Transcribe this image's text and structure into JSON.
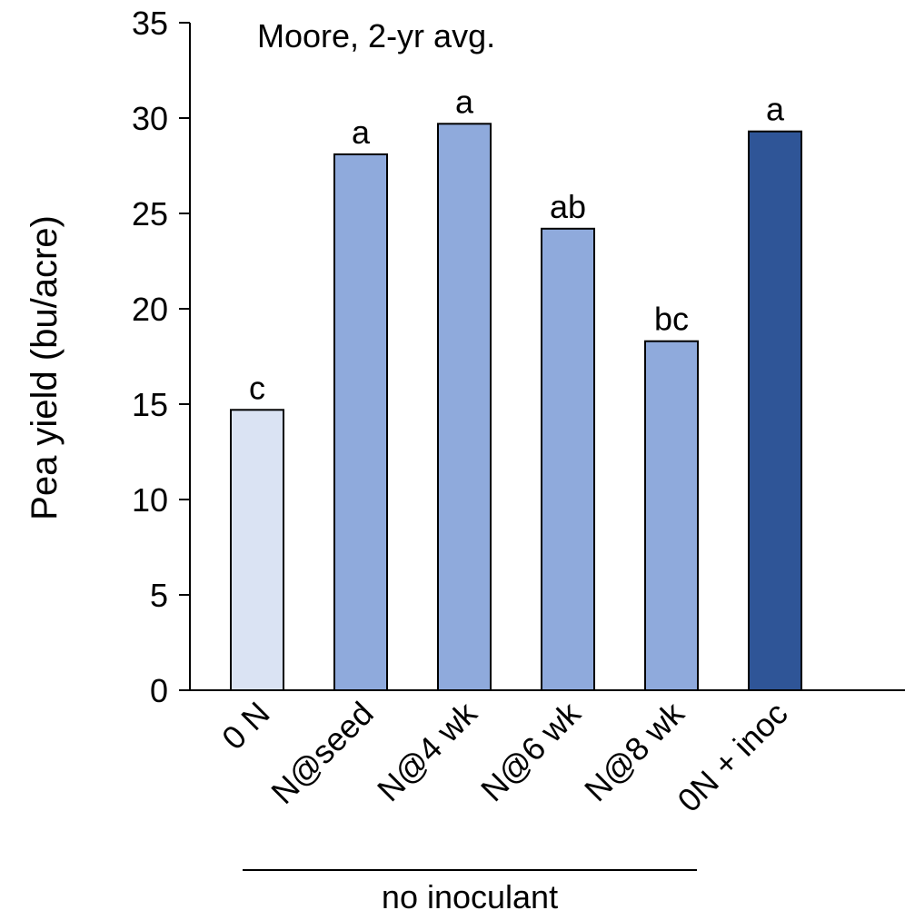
{
  "chart_data": {
    "type": "bar",
    "title": "Moore, 2-yr avg.",
    "xlabel": "",
    "ylabel": "Pea yield (bu/acre)",
    "ylim": [
      0,
      35
    ],
    "yticks": [
      0,
      5,
      10,
      15,
      20,
      25,
      30,
      35
    ],
    "yticks_text": [
      "0",
      "5",
      "10",
      "15",
      "20",
      "25",
      "30",
      "35"
    ],
    "grid": false,
    "legend": "none",
    "categories": [
      "0 N",
      "N@seed",
      "N@4 wk",
      "N@6 wk",
      "N@8 wk",
      "0N + inoc"
    ],
    "values": [
      14.7,
      28.1,
      29.7,
      24.2,
      18.3,
      29.3
    ],
    "significance_letters": [
      "c",
      "a",
      "a",
      "ab",
      "bc",
      "a"
    ],
    "bar_colors": [
      "#dae3f3",
      "#8faadc",
      "#8faadc",
      "#8faadc",
      "#8faadc",
      "#2f5597"
    ],
    "bar_edge_color": "#000000",
    "group_annotation": {
      "label": "no inoculant",
      "spans_categories": [
        "N@seed",
        "N@4 wk",
        "N@6 wk",
        "N@8 wk"
      ]
    }
  }
}
